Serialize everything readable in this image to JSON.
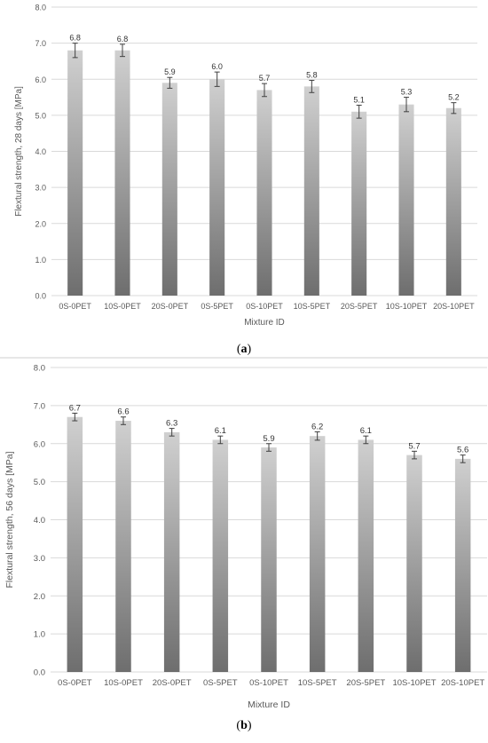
{
  "colors": {
    "bar_top": "#d0d0d0",
    "bar_bottom": "#6e6e6e",
    "grid": "#d9d9d9",
    "axis_text": "#595959",
    "error_bar": "#404040"
  },
  "chart_data": [
    {
      "type": "bar",
      "panel": "a",
      "caption_letter": "a",
      "categories": [
        "0S-0PET",
        "10S-0PET",
        "20S-0PET",
        "0S-5PET",
        "0S-10PET",
        "10S-5PET",
        "20S-5PET",
        "10S-10PET",
        "20S-10PET"
      ],
      "values": [
        6.8,
        6.8,
        5.9,
        6.0,
        5.7,
        5.8,
        5.1,
        5.3,
        5.2
      ],
      "value_labels": [
        "6.8",
        "6.8",
        "5.9",
        "6.0",
        "5.7",
        "5.8",
        "5.1",
        "5.3",
        "5.2"
      ],
      "error": [
        0.2,
        0.17,
        0.15,
        0.2,
        0.18,
        0.17,
        0.18,
        0.2,
        0.15
      ],
      "xlabel": "Mixture ID",
      "ylabel": "Flextural strength, 28 days  [MPa]",
      "ylim": [
        0,
        8
      ],
      "yticks": [
        "0.0",
        "1.0",
        "2.0",
        "3.0",
        "4.0",
        "5.0",
        "6.0",
        "7.0",
        "8.0"
      ],
      "grid": true,
      "legend": "none"
    },
    {
      "type": "bar",
      "panel": "b",
      "caption_letter": "b",
      "categories": [
        "0S-0PET",
        "10S-0PET",
        "20S-0PET",
        "0S-5PET",
        "0S-10PET",
        "10S-5PET",
        "20S-5PET",
        "10S-10PET",
        "20S-10PET"
      ],
      "values": [
        6.7,
        6.6,
        6.3,
        6.1,
        5.9,
        6.2,
        6.1,
        5.7,
        5.6
      ],
      "value_labels": [
        "6.7",
        "6.6",
        "6.3",
        "6.1",
        "5.9",
        "6.2",
        "6.1",
        "5.7",
        "5.6"
      ],
      "error": [
        0.1,
        0.1,
        0.1,
        0.1,
        0.1,
        0.11,
        0.1,
        0.1,
        0.1
      ],
      "xlabel": "Mixture ID",
      "ylabel": "Flextural strength, 56 days  [MPa]",
      "ylim": [
        0,
        8
      ],
      "yticks": [
        "0.0",
        "1.0",
        "2.0",
        "3.0",
        "4.0",
        "5.0",
        "6.0",
        "7.0",
        "8.0"
      ],
      "grid": true,
      "legend": "none"
    }
  ]
}
